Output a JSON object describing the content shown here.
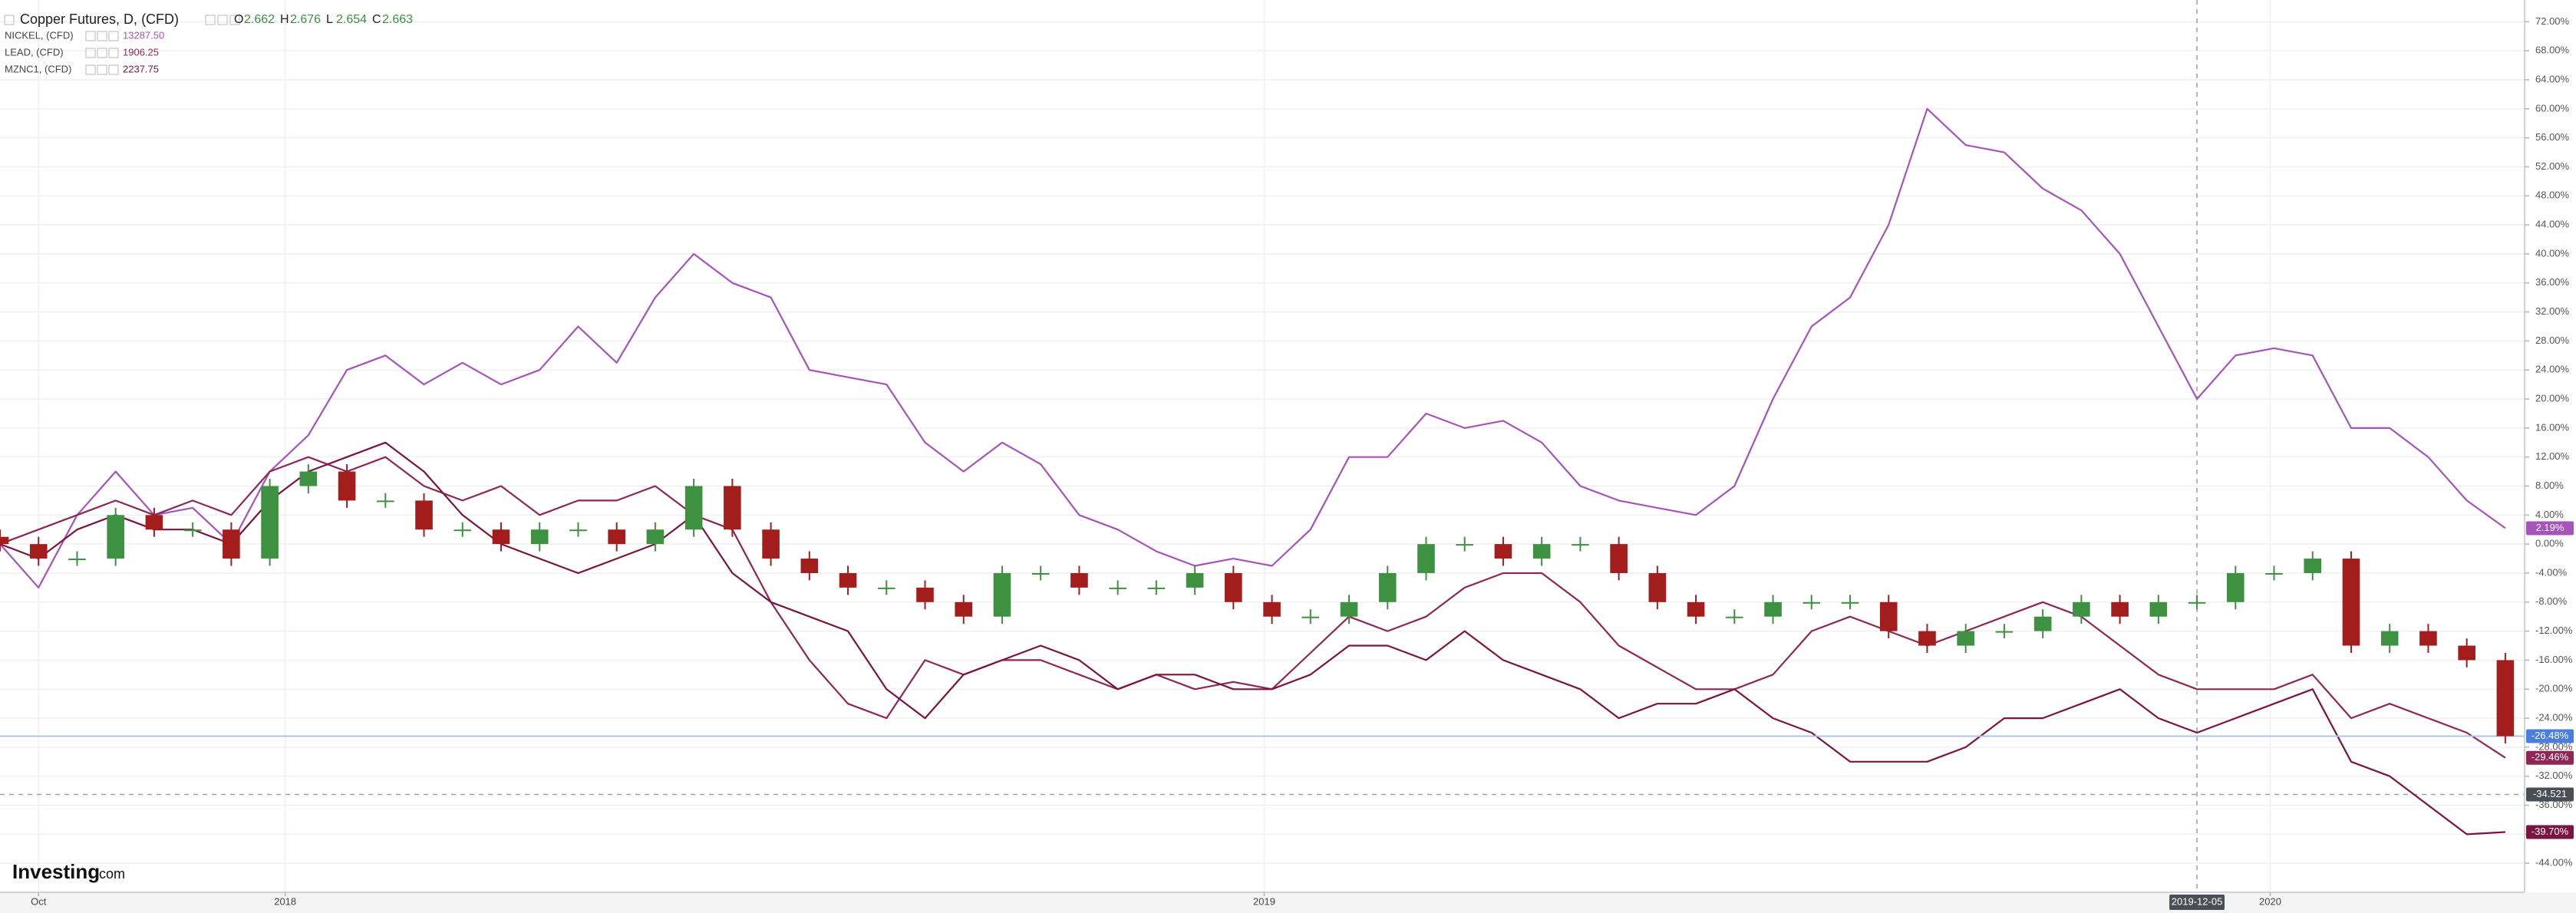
{
  "chart_data": {
    "type": "line",
    "xlim": [
      0,
      65.5
    ],
    "ylim": [
      -48,
      75
    ],
    "grid": true,
    "xticks": [
      {
        "value": 1,
        "label": "Oct"
      },
      {
        "value": 7.4,
        "label": "2018"
      },
      {
        "value": 32.8,
        "label": "2019"
      },
      {
        "value": 58.9,
        "label": "2020"
      }
    ],
    "yticks": [
      {
        "value": -44,
        "label": "-44.00%"
      },
      {
        "value": -40,
        "label": "-40.00%"
      },
      {
        "value": -36,
        "label": "-36.00%"
      },
      {
        "value": -32,
        "label": "-32.00%"
      },
      {
        "value": -28,
        "label": "-28.00%"
      },
      {
        "value": -24,
        "label": "-24.00%"
      },
      {
        "value": -20,
        "label": "-20.00%"
      },
      {
        "value": -16,
        "label": "-16.00%"
      },
      {
        "value": -12,
        "label": "-12.00%"
      },
      {
        "value": -8,
        "label": "-8.00%"
      },
      {
        "value": -4,
        "label": "-4.00%"
      },
      {
        "value": 0,
        "label": "0.00%"
      },
      {
        "value": 4,
        "label": "4.00%"
      },
      {
        "value": 8,
        "label": "8.00%"
      },
      {
        "value": 12,
        "label": "12.00%"
      },
      {
        "value": 16,
        "label": "16.00%"
      },
      {
        "value": 20,
        "label": "20.00%"
      },
      {
        "value": 24,
        "label": "24.00%"
      },
      {
        "value": 28,
        "label": "28.00%"
      },
      {
        "value": 32,
        "label": "32.00%"
      },
      {
        "value": 36,
        "label": "36.00%"
      },
      {
        "value": 40,
        "label": "40.00%"
      },
      {
        "value": 44,
        "label": "44.00%"
      },
      {
        "value": 48,
        "label": "48.00%"
      },
      {
        "value": 52,
        "label": "52.00%"
      },
      {
        "value": 56,
        "label": "56.00%"
      },
      {
        "value": 60,
        "label": "60.00%"
      },
      {
        "value": 64,
        "label": "64.00%"
      },
      {
        "value": 68,
        "label": "68.00%"
      },
      {
        "value": 72,
        "label": "72.00%"
      }
    ],
    "quote": [
      {
        "label": "O",
        "value": 2.662
      },
      {
        "label": "H",
        "value": 2.676
      },
      {
        "label": "L",
        "value": 2.654
      },
      {
        "label": "C",
        "value": 2.663
      }
    ],
    "series": [
      {
        "name": "Copper Futures, D, (CFD)",
        "type": "candlestick",
        "up_color": "#3d9140",
        "down_color": "#a31d1d",
        "color": "#4a7fe0",
        "end_label": "-26.48%",
        "open": [
          1,
          0,
          -2,
          -2,
          4,
          2,
          2,
          -2,
          8,
          10,
          6,
          6,
          2,
          2,
          0,
          2,
          2,
          0,
          2,
          8,
          2,
          -2,
          -4,
          -6,
          -6,
          -8,
          -10,
          -4,
          -4,
          -6,
          -6,
          -6,
          -4,
          -8,
          -10,
          -10,
          -8,
          -4,
          0,
          0,
          -2,
          0,
          0,
          -4,
          -8,
          -10,
          -10,
          -8,
          -8,
          -8,
          -12,
          -14,
          -12,
          -12,
          -10,
          -8,
          -10,
          -8,
          -8,
          -4,
          -4,
          -2,
          -14,
          -12,
          -14,
          -16
        ],
        "high": [
          2,
          1,
          -1,
          5,
          5,
          3,
          3,
          9,
          11,
          11,
          7,
          7,
          3,
          3,
          3,
          3,
          3,
          3,
          9,
          9,
          3,
          -1,
          -3,
          -5,
          -5,
          -7,
          -3,
          -3,
          -3,
          -5,
          -5,
          -3,
          -3,
          -7,
          -9,
          -7,
          -3,
          1,
          1,
          1,
          1,
          1,
          1,
          -3,
          -7,
          -9,
          -7,
          -7,
          -7,
          -7,
          -11,
          -11,
          -11,
          -9,
          -7,
          -7,
          -7,
          -7,
          -3,
          -3,
          -1,
          -1,
          -11,
          -11,
          -13,
          -15
        ],
        "low": [
          -1,
          -3,
          -3,
          -3,
          1,
          1,
          -3,
          -3,
          7,
          5,
          5,
          1,
          1,
          -1,
          -1,
          1,
          -1,
          -1,
          1,
          1,
          -3,
          -5,
          -7,
          -7,
          -9,
          -11,
          -11,
          -5,
          -7,
          -7,
          -7,
          -7,
          -9,
          -11,
          -11,
          -11,
          -9,
          -5,
          -1,
          -3,
          -3,
          -1,
          -5,
          -9,
          -11,
          -11,
          -11,
          -9,
          -9,
          -13,
          -15,
          -15,
          -13,
          -13,
          -11,
          -11,
          -11,
          -9,
          -9,
          -5,
          -5,
          -15,
          -15,
          -15,
          -17,
          -27.5
        ],
        "values": [
          0,
          -2,
          -2,
          4,
          2,
          2,
          -2,
          8,
          10,
          6,
          6,
          2,
          2,
          0,
          2,
          2,
          0,
          2,
          8,
          2,
          -2,
          -4,
          -6,
          -6,
          -8,
          -10,
          -4,
          -4,
          -6,
          -6,
          -6,
          -4,
          -8,
          -10,
          -10,
          -8,
          -4,
          0,
          0,
          -2,
          0,
          0,
          -4,
          -8,
          -10,
          -10,
          -8,
          -8,
          -8,
          -12,
          -14,
          -12,
          -12,
          -10,
          -8,
          -10,
          -8,
          -8,
          -4,
          -4,
          -2,
          -14,
          -12,
          -14,
          -16,
          -26.48
        ]
      },
      {
        "name": "NICKEL, (CFD)",
        "type": "line",
        "color": "#a653bb",
        "price": "13287.50",
        "end_label": "2.19%",
        "values": [
          0,
          -6,
          4,
          10,
          4,
          5,
          0,
          10,
          15,
          24,
          26,
          22,
          25,
          22,
          24,
          30,
          25,
          34,
          40,
          36,
          34,
          24,
          23,
          22,
          14,
          10,
          14,
          11,
          4,
          2,
          -1,
          -3,
          -2,
          -3,
          2,
          12,
          12,
          18,
          16,
          17,
          14,
          8,
          6,
          5,
          4,
          8,
          20,
          30,
          34,
          44,
          60,
          55,
          54,
          49,
          46,
          40,
          30,
          20,
          26,
          27,
          26,
          16,
          16,
          12,
          6,
          2.19
        ]
      },
      {
        "name": "LEAD, (CFD)",
        "type": "line",
        "color": "#8e2756",
        "price": "1906.25",
        "end_label": "-29.46%",
        "values": [
          0,
          2,
          4,
          6,
          4,
          6,
          4,
          10,
          12,
          10,
          12,
          8,
          6,
          8,
          4,
          6,
          6,
          8,
          4,
          2,
          -8,
          -16,
          -22,
          -24,
          -16,
          -18,
          -16,
          -16,
          -18,
          -20,
          -18,
          -20,
          -19,
          -20,
          -15,
          -10,
          -12,
          -10,
          -6,
          -4,
          -4,
          -8,
          -14,
          -17,
          -20,
          -20,
          -18,
          -12,
          -10,
          -12,
          -14,
          -12,
          -10,
          -8,
          -10,
          -14,
          -18,
          -20,
          -20,
          -20,
          -18,
          -24,
          -22,
          -24,
          -26,
          -29.46
        ]
      },
      {
        "name": "MZNC1, (CFD)",
        "type": "line",
        "color": "#7a1440",
        "price": "2237.75",
        "end_label": "-39.70%",
        "values": [
          0,
          -2,
          2,
          4,
          2,
          2,
          0,
          6,
          10,
          12,
          14,
          10,
          4,
          0,
          -2,
          -4,
          -2,
          0,
          4,
          -4,
          -8,
          -10,
          -12,
          -20,
          -24,
          -18,
          -16,
          -14,
          -16,
          -20,
          -18,
          -18,
          -20,
          -20,
          -18,
          -14,
          -14,
          -16,
          -12,
          -16,
          -18,
          -20,
          -24,
          -22,
          -22,
          -20,
          -24,
          -26,
          -30,
          -30,
          -30,
          -28,
          -24,
          -24,
          -22,
          -20,
          -24,
          -26,
          -24,
          -22,
          -20,
          -30,
          -32,
          -36,
          -40,
          -39.7
        ]
      }
    ],
    "crosshair": {
      "x": 57.0,
      "x_label": "2019-12-05",
      "y": -34.521
    }
  },
  "brand": {
    "name": "Investing",
    "suffix": ".com"
  }
}
